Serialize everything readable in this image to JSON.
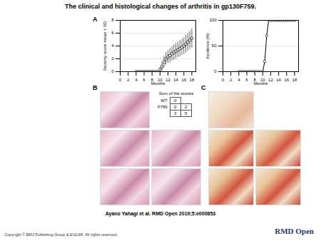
{
  "title": "The clinical and histological changes of arthritis in gp130F759.",
  "panels": [
    "A",
    "B",
    "C"
  ],
  "chart_data": [
    {
      "type": "scatter",
      "xlabel": "Months",
      "ylabel": "Severity score mean ± SD",
      "x": [
        4,
        4.5,
        5,
        5.5,
        6,
        6.5,
        7,
        7.5,
        8,
        8.5,
        9,
        9.5,
        10,
        10.5,
        11,
        11.5,
        12,
        12.5,
        13,
        13.5,
        14,
        14.5,
        15,
        15.5,
        16,
        16.5,
        17,
        17.5,
        18
      ],
      "values": [
        0,
        0,
        0,
        0,
        0,
        0,
        0,
        0,
        0,
        0,
        0,
        0,
        0.3,
        0.8,
        1.5,
        2,
        2.3,
        2.5,
        2.8,
        3,
        3.2,
        3.4,
        3.6,
        3.8,
        4,
        4.3,
        4.6,
        4.9,
        5.2
      ],
      "error": [
        0,
        0,
        0,
        0,
        0,
        0,
        0,
        0,
        0,
        0,
        0,
        0,
        0.4,
        0.7,
        0.9,
        1,
        1,
        1.1,
        1.1,
        1.2,
        1.2,
        1.2,
        1.3,
        1.3,
        1.3,
        1.4,
        1.4,
        1.4,
        1.5
      ],
      "xlim": [
        0,
        19
      ],
      "xticks": [
        0,
        2,
        4,
        6,
        8,
        10,
        12,
        14,
        16,
        18
      ],
      "ylim": [
        0,
        8
      ],
      "yticks": [
        0,
        2,
        4,
        6,
        8
      ],
      "grid": true,
      "marker": "square",
      "color": "#000000"
    },
    {
      "type": "line",
      "xlabel": "Months",
      "ylabel": "Incidence (%)",
      "x": [
        4,
        4.5,
        5,
        5.5,
        6,
        6.5,
        7,
        7.5,
        8,
        8.5,
        9,
        9.5,
        10,
        10.5,
        11,
        11.5,
        12,
        12.5,
        13,
        13.5,
        14,
        14.5,
        15,
        15.5,
        16,
        16.5,
        17,
        17.5,
        18
      ],
      "values": [
        0,
        0,
        0,
        0,
        0,
        0,
        0,
        0,
        0,
        0,
        0,
        0,
        0,
        20,
        70,
        100,
        100,
        100,
        100,
        100,
        100,
        100,
        100,
        100,
        100,
        100,
        100,
        100,
        100
      ],
      "xlim": [
        0,
        19
      ],
      "xticks": [
        0,
        2,
        4,
        6,
        8,
        10,
        12,
        14,
        16,
        18
      ],
      "ylim": [
        0,
        100
      ],
      "yticks": [
        0,
        50,
        100
      ],
      "grid": true,
      "marker": "circle",
      "color": "#000000"
    }
  ],
  "table": {
    "title": "Sum of the scores",
    "rows": [
      {
        "label": "WT",
        "scores": [
          [
            0
          ]
        ]
      },
      {
        "label": "F759",
        "scores": [
          [
            0,
            2
          ],
          [
            3,
            5
          ]
        ]
      }
    ]
  },
  "citation": "Ayano Yahagi et al. RMD Open 2019;5:e000853",
  "copyright": "Copyright © BMJ Publishing Group & EULAR. All rights reserved.",
  "logo": "RMD Open"
}
